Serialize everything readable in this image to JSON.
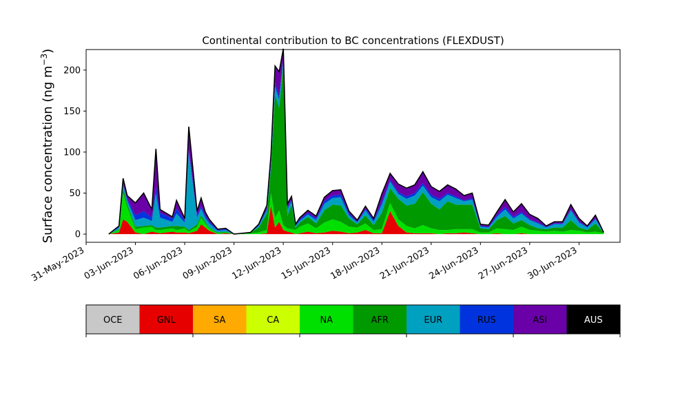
{
  "chart_data": {
    "type": "area",
    "stacked": true,
    "title": "Continental contribution to BC concentrations (FLEXDUST)",
    "ylabel": "Surface concentration (ng m",
    "ylabel_sup": "−3",
    "ylabel_close": ")",
    "xlabel": "",
    "ylim": [
      -10,
      225
    ],
    "xlim": [
      "2023-05-31T00:00",
      "2023-07-02T12:00"
    ],
    "yticks": [
      0,
      50,
      100,
      150,
      200
    ],
    "xticks": [
      {
        "date": "2023-05-31",
        "label": "31-May-2023"
      },
      {
        "date": "2023-06-03",
        "label": "03-Jun-2023"
      },
      {
        "date": "2023-06-06",
        "label": "06-Jun-2023"
      },
      {
        "date": "2023-06-09",
        "label": "09-Jun-2023"
      },
      {
        "date": "2023-06-12",
        "label": "12-Jun-2023"
      },
      {
        "date": "2023-06-15",
        "label": "15-Jun-2023"
      },
      {
        "date": "2023-06-18",
        "label": "18-Jun-2023"
      },
      {
        "date": "2023-06-21",
        "label": "21-Jun-2023"
      },
      {
        "date": "2023-06-24",
        "label": "24-Jun-2023"
      },
      {
        "date": "2023-06-27",
        "label": "27-Jun-2023"
      },
      {
        "date": "2023-06-30",
        "label": "30-Jun-2023"
      }
    ],
    "grid": false,
    "legend_placement": "below plot as color bar",
    "series_order": [
      "GNL",
      "NA",
      "AFR",
      "EUR",
      "RUS",
      "ASI"
    ],
    "total_line_color": "#000000",
    "x": [
      "2023-06-01T09:00",
      "2023-06-02T00:00",
      "2023-06-02T06:00",
      "2023-06-02T12:00",
      "2023-06-03T00:00",
      "2023-06-03T12:00",
      "2023-06-04T00:00",
      "2023-06-04T06:00",
      "2023-06-04T12:00",
      "2023-06-05T06:00",
      "2023-06-05T12:00",
      "2023-06-06T00:00",
      "2023-06-06T06:00",
      "2023-06-06T18:00",
      "2023-06-07T00:00",
      "2023-06-07T06:00",
      "2023-06-07T12:00",
      "2023-06-08T00:00",
      "2023-06-08T12:00",
      "2023-06-09T00:00",
      "2023-06-10T00:00",
      "2023-06-10T12:00",
      "2023-06-11T00:00",
      "2023-06-11T06:00",
      "2023-06-11T12:00",
      "2023-06-11T18:00",
      "2023-06-12T00:00",
      "2023-06-12T06:00",
      "2023-06-12T12:00",
      "2023-06-12T18:00",
      "2023-06-13T00:00",
      "2023-06-13T12:00",
      "2023-06-14T00:00",
      "2023-06-14T12:00",
      "2023-06-15T00:00",
      "2023-06-15T12:00",
      "2023-06-16T00:00",
      "2023-06-16T12:00",
      "2023-06-17T00:00",
      "2023-06-17T12:00",
      "2023-06-18T00:00",
      "2023-06-18T12:00",
      "2023-06-19T00:00",
      "2023-06-19T12:00",
      "2023-06-20T00:00",
      "2023-06-20T12:00",
      "2023-06-21T00:00",
      "2023-06-21T12:00",
      "2023-06-22T00:00",
      "2023-06-22T12:00",
      "2023-06-23T00:00",
      "2023-06-23T12:00",
      "2023-06-24T00:00",
      "2023-06-24T12:00",
      "2023-06-25T00:00",
      "2023-06-25T12:00",
      "2023-06-26T00:00",
      "2023-06-26T12:00",
      "2023-06-27T00:00",
      "2023-06-27T12:00",
      "2023-06-28T00:00",
      "2023-06-28T12:00",
      "2023-06-29T00:00",
      "2023-06-29T12:00",
      "2023-06-30T00:00",
      "2023-06-30T12:00",
      "2023-07-01T00:00",
      "2023-07-01T12:00"
    ],
    "series": [
      {
        "name": "GNL",
        "color": "#e60000",
        "values": [
          0,
          2,
          18,
          15,
          2,
          0,
          3,
          2,
          1,
          3,
          2,
          2,
          1,
          4,
          12,
          8,
          4,
          0,
          1,
          0,
          0,
          0,
          1,
          35,
          8,
          15,
          5,
          3,
          2,
          0,
          1,
          3,
          1,
          2,
          4,
          3,
          1,
          2,
          5,
          1,
          1,
          28,
          10,
          2,
          1,
          1,
          1,
          0,
          1,
          1,
          2,
          1,
          0,
          0,
          1,
          0,
          0,
          1,
          0,
          0,
          0,
          0,
          0,
          0,
          0,
          0,
          0,
          0
        ]
      },
      {
        "name": "NA",
        "color": "#00e000",
        "values": [
          0,
          3,
          32,
          18,
          4,
          8,
          6,
          3,
          4,
          4,
          3,
          5,
          2,
          5,
          8,
          5,
          3,
          1,
          1,
          0,
          1,
          2,
          4,
          15,
          12,
          14,
          6,
          4,
          4,
          5,
          8,
          10,
          6,
          12,
          14,
          12,
          8,
          6,
          8,
          4,
          5,
          10,
          8,
          8,
          6,
          10,
          6,
          5,
          4,
          5,
          4,
          5,
          2,
          2,
          6,
          6,
          5,
          8,
          5,
          4,
          3,
          4,
          3,
          5,
          4,
          2,
          3,
          1
        ]
      },
      {
        "name": "AFR",
        "color": "#009900",
        "values": [
          0,
          1,
          6,
          4,
          3,
          2,
          2,
          3,
          3,
          3,
          5,
          2,
          2,
          3,
          3,
          2,
          1,
          1,
          1,
          0,
          1,
          6,
          20,
          30,
          150,
          125,
          195,
          15,
          30,
          3,
          5,
          8,
          6,
          15,
          18,
          20,
          10,
          4,
          10,
          6,
          20,
          18,
          25,
          25,
          30,
          40,
          30,
          25,
          35,
          30,
          30,
          30,
          5,
          4,
          10,
          16,
          8,
          8,
          6,
          3,
          3,
          4,
          5,
          12,
          4,
          3,
          10,
          1
        ]
      },
      {
        "name": "EUR",
        "color": "#00a0c0",
        "values": [
          0,
          2,
          4,
          4,
          8,
          10,
          5,
          42,
          12,
          5,
          15,
          5,
          95,
          8,
          8,
          5,
          5,
          2,
          2,
          0,
          0,
          2,
          4,
          5,
          10,
          10,
          5,
          8,
          4,
          2,
          2,
          3,
          4,
          8,
          8,
          10,
          4,
          2,
          6,
          4,
          10,
          8,
          6,
          8,
          10,
          8,
          8,
          10,
          8,
          8,
          4,
          6,
          2,
          2,
          4,
          8,
          6,
          8,
          6,
          6,
          2,
          4,
          4,
          12,
          6,
          3,
          5,
          0
        ]
      },
      {
        "name": "RUS",
        "color": "#0033dd",
        "values": [
          0,
          1,
          2,
          2,
          6,
          8,
          4,
          8,
          6,
          4,
          6,
          3,
          3,
          3,
          3,
          3,
          2,
          1,
          1,
          0,
          0,
          1,
          2,
          2,
          5,
          4,
          3,
          2,
          2,
          1,
          2,
          2,
          2,
          3,
          3,
          3,
          2,
          1,
          2,
          2,
          3,
          2,
          2,
          3,
          3,
          3,
          3,
          3,
          2,
          2,
          1,
          2,
          1,
          1,
          2,
          3,
          2,
          2,
          1,
          1,
          1,
          1,
          1,
          1,
          1,
          1,
          1,
          0
        ]
      },
      {
        "name": "ASI",
        "color": "#6a00a8",
        "values": [
          0,
          1,
          6,
          4,
          15,
          22,
          10,
          46,
          4,
          2,
          10,
          2,
          28,
          5,
          10,
          4,
          3,
          1,
          1,
          0,
          0,
          1,
          4,
          10,
          20,
          30,
          12,
          5,
          4,
          1,
          2,
          3,
          3,
          5,
          6,
          6,
          3,
          2,
          3,
          2,
          10,
          8,
          10,
          10,
          10,
          14,
          10,
          9,
          10,
          9,
          6,
          6,
          2,
          2,
          4,
          9,
          6,
          10,
          6,
          5,
          1,
          2,
          2,
          6,
          4,
          1,
          4,
          0
        ]
      }
    ]
  },
  "legend": {
    "entries": [
      {
        "label": "OCE",
        "color": "#c8c8c8",
        "text_color": "#000000"
      },
      {
        "label": "GNL",
        "color": "#e60000",
        "text_color": "#000000"
      },
      {
        "label": "SA",
        "color": "#ffaa00",
        "text_color": "#000000"
      },
      {
        "label": "CA",
        "color": "#ccff00",
        "text_color": "#000000"
      },
      {
        "label": "NA",
        "color": "#00e000",
        "text_color": "#000000"
      },
      {
        "label": "AFR",
        "color": "#009900",
        "text_color": "#000000"
      },
      {
        "label": "EUR",
        "color": "#00a0c0",
        "text_color": "#000000"
      },
      {
        "label": "RUS",
        "color": "#0033dd",
        "text_color": "#000000"
      },
      {
        "label": "ASI",
        "color": "#6a00a8",
        "text_color": "#000000"
      },
      {
        "label": "AUS",
        "color": "#000000",
        "text_color": "#ffffff"
      }
    ]
  }
}
